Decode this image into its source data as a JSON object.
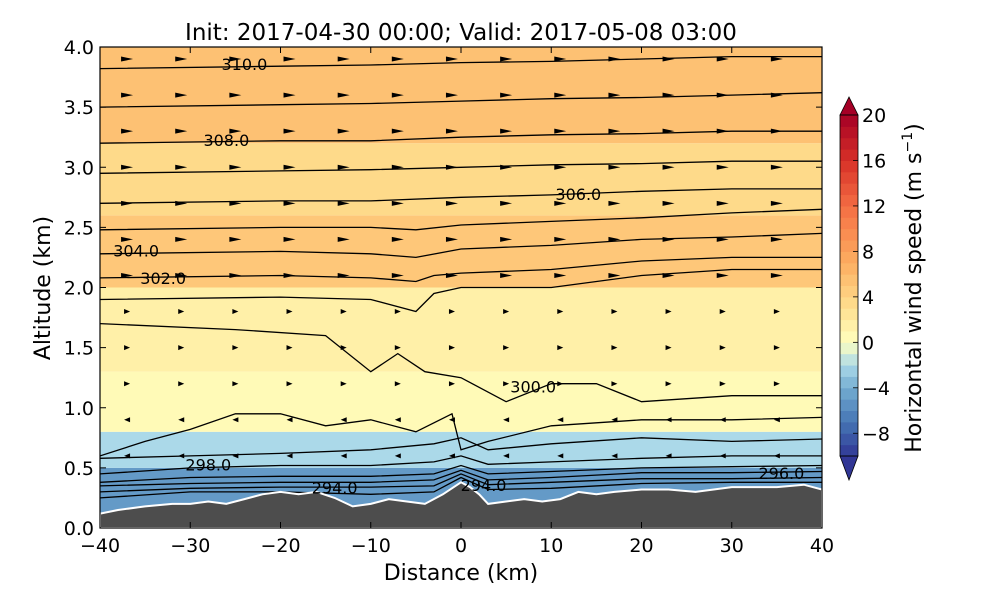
{
  "chart_data": {
    "type": "heatmap",
    "title": "Init: 2017-04-30 00:00; Valid: 2017-05-08 03:00",
    "xlabel": "Distance (km)",
    "ylabel": "Altitude (km)",
    "xlim": [
      -40,
      40
    ],
    "ylim": [
      0.0,
      4.0
    ],
    "xticks": [
      "−40",
      "−30",
      "−20",
      "−10",
      "0",
      "10",
      "20",
      "30",
      "40"
    ],
    "yticks": [
      "0.0",
      "0.5",
      "1.0",
      "1.5",
      "2.0",
      "2.5",
      "3.0",
      "3.5",
      "4.0"
    ],
    "colorbar": {
      "label": "Horizontal wind speed (m s",
      "label_exp": "−1",
      "label_close": ")",
      "range": [
        -10,
        20
      ],
      "ticks": [
        "20",
        "16",
        "12",
        "8",
        "4",
        "0",
        "−4",
        "−8"
      ],
      "extend": "both",
      "colormap": "RdYlBu_r"
    },
    "wind_field_bands": [
      {
        "z": [
          0.0,
          0.5
        ],
        "speed": -5
      },
      {
        "z": [
          0.5,
          0.8
        ],
        "speed": -2
      },
      {
        "z": [
          0.8,
          1.3
        ],
        "speed": 0.5
      },
      {
        "z": [
          1.3,
          2.0
        ],
        "speed": 1.5
      },
      {
        "z": [
          2.0,
          2.6
        ],
        "speed": 5
      },
      {
        "z": [
          2.6,
          3.2
        ],
        "speed": 3.5
      },
      {
        "z": [
          3.2,
          4.0
        ],
        "speed": 5.5
      }
    ],
    "isentropes": [
      {
        "label": "294.0",
        "x": [
          -40,
          -30,
          -20,
          -10,
          -3,
          0,
          3,
          10,
          20,
          30,
          40
        ],
        "z": [
          0.25,
          0.3,
          0.3,
          0.28,
          0.3,
          0.42,
          0.32,
          0.33,
          0.37,
          0.38,
          0.38
        ]
      },
      {
        "label": "",
        "x": [
          -40,
          -30,
          -20,
          -10,
          -3,
          0,
          3,
          10,
          20,
          30,
          40
        ],
        "z": [
          0.3,
          0.33,
          0.34,
          0.34,
          0.35,
          0.45,
          0.36,
          0.38,
          0.41,
          0.41,
          0.42
        ]
      },
      {
        "label": "296.0",
        "x": [
          -40,
          -30,
          -20,
          -10,
          -3,
          0,
          3,
          10,
          20,
          30,
          40
        ],
        "z": [
          0.35,
          0.37,
          0.38,
          0.38,
          0.4,
          0.48,
          0.4,
          0.42,
          0.46,
          0.46,
          0.47
        ]
      },
      {
        "label": "",
        "x": [
          -40,
          -30,
          -20,
          -10,
          -3,
          0,
          3,
          10,
          20,
          30,
          40
        ],
        "z": [
          0.38,
          0.42,
          0.43,
          0.43,
          0.45,
          0.52,
          0.45,
          0.47,
          0.5,
          0.51,
          0.52
        ]
      },
      {
        "label": "298.0",
        "x": [
          -40,
          -30,
          -20,
          -10,
          -3,
          0,
          3,
          10,
          20,
          30,
          40
        ],
        "z": [
          0.45,
          0.5,
          0.52,
          0.52,
          0.55,
          0.6,
          0.53,
          0.55,
          0.58,
          0.6,
          0.6
        ]
      },
      {
        "label": "",
        "x": [
          -40,
          -30,
          -20,
          -10,
          -3,
          0,
          3,
          10,
          20,
          30,
          40
        ],
        "z": [
          0.58,
          0.6,
          0.62,
          0.65,
          0.7,
          0.75,
          0.65,
          0.7,
          0.75,
          0.72,
          0.74
        ]
      },
      {
        "label": "",
        "x": [
          -40,
          -35,
          -30,
          -25,
          -20,
          -15,
          -10,
          -5,
          -1,
          0,
          3,
          10,
          20,
          30,
          40
        ],
        "z": [
          0.6,
          0.72,
          0.82,
          0.95,
          0.95,
          0.85,
          0.9,
          0.8,
          0.95,
          0.65,
          0.72,
          0.85,
          0.9,
          0.9,
          0.92
        ]
      },
      {
        "label": "300.0",
        "x": [
          -40,
          -25,
          -15,
          -10,
          -7,
          -4,
          0,
          5,
          10,
          15,
          20,
          30,
          40
        ],
        "z": [
          1.7,
          1.65,
          1.6,
          1.3,
          1.45,
          1.3,
          1.25,
          1.05,
          1.2,
          1.2,
          1.05,
          1.1,
          1.1
        ]
      },
      {
        "label": "302.0",
        "x": [
          -40,
          -20,
          -10,
          -5,
          -3,
          0,
          10,
          20,
          30,
          40
        ],
        "z": [
          1.9,
          1.92,
          1.9,
          1.8,
          1.95,
          2.0,
          2.0,
          2.1,
          2.15,
          2.15
        ]
      },
      {
        "label": "",
        "x": [
          -40,
          -20,
          -10,
          -5,
          -3,
          0,
          10,
          20,
          30,
          40
        ],
        "z": [
          2.08,
          2.1,
          2.08,
          2.05,
          2.1,
          2.12,
          2.15,
          2.22,
          2.25,
          2.25
        ]
      },
      {
        "label": "304.0",
        "x": [
          -40,
          -20,
          -10,
          -5,
          0,
          10,
          20,
          30,
          40
        ],
        "z": [
          2.28,
          2.3,
          2.28,
          2.25,
          2.32,
          2.35,
          2.4,
          2.42,
          2.45
        ]
      },
      {
        "label": "",
        "x": [
          -40,
          -20,
          -10,
          -5,
          0,
          10,
          20,
          30,
          40
        ],
        "z": [
          2.48,
          2.5,
          2.5,
          2.48,
          2.52,
          2.55,
          2.58,
          2.62,
          2.65
        ]
      },
      {
        "label": "306.0",
        "x": [
          -40,
          -20,
          -10,
          0,
          10,
          20,
          30,
          40
        ],
        "z": [
          2.7,
          2.72,
          2.72,
          2.75,
          2.77,
          2.8,
          2.82,
          2.82
        ]
      },
      {
        "label": "",
        "x": [
          -40,
          -20,
          -10,
          0,
          10,
          20,
          30,
          40
        ],
        "z": [
          2.95,
          2.97,
          2.98,
          3.0,
          3.02,
          3.03,
          3.05,
          3.05
        ]
      },
      {
        "label": "308.0",
        "x": [
          -40,
          -20,
          -10,
          0,
          10,
          20,
          30,
          40
        ],
        "z": [
          3.2,
          3.22,
          3.22,
          3.25,
          3.27,
          3.28,
          3.3,
          3.3
        ]
      },
      {
        "label": "",
        "x": [
          -40,
          -20,
          -10,
          0,
          10,
          20,
          30,
          40
        ],
        "z": [
          3.5,
          3.52,
          3.53,
          3.55,
          3.57,
          3.58,
          3.6,
          3.62
        ]
      },
      {
        "label": "310.0",
        "x": [
          -40,
          -20,
          -10,
          0,
          10,
          20,
          30,
          40
        ],
        "z": [
          3.82,
          3.84,
          3.85,
          3.87,
          3.88,
          3.9,
          3.92,
          3.92
        ]
      }
    ],
    "isentrope_labels": [
      {
        "text": "310.0",
        "x": -24,
        "z": 3.85
      },
      {
        "text": "308.0",
        "x": -26,
        "z": 3.22
      },
      {
        "text": "306.0",
        "x": 13,
        "z": 2.77
      },
      {
        "text": "304.0",
        "x": -36,
        "z": 2.3
      },
      {
        "text": "302.0",
        "x": -33,
        "z": 2.07
      },
      {
        "text": "300.0",
        "x": 8,
        "z": 1.17
      },
      {
        "text": "298.0",
        "x": -28,
        "z": 0.52
      },
      {
        "text": "294.0",
        "x": -14,
        "z": 0.33
      },
      {
        "text": "294.0",
        "x": 2.5,
        "z": 0.35
      },
      {
        "text": "296.0",
        "x": 35.5,
        "z": 0.45
      }
    ],
    "terrain": {
      "x": [
        -40,
        -38,
        -35,
        -32,
        -30,
        -28,
        -26,
        -24,
        -22,
        -20,
        -18,
        -16,
        -14,
        -12,
        -10,
        -8,
        -6,
        -4,
        -2,
        0,
        1,
        2,
        3,
        5,
        7,
        9,
        11,
        13,
        15,
        17,
        20,
        23,
        26,
        30,
        35,
        38,
        40
      ],
      "z": [
        0.12,
        0.15,
        0.18,
        0.2,
        0.2,
        0.22,
        0.2,
        0.24,
        0.28,
        0.3,
        0.28,
        0.3,
        0.25,
        0.18,
        0.2,
        0.24,
        0.22,
        0.2,
        0.28,
        0.38,
        0.34,
        0.28,
        0.2,
        0.22,
        0.24,
        0.22,
        0.24,
        0.3,
        0.28,
        0.3,
        0.32,
        0.32,
        0.3,
        0.34,
        0.34,
        0.36,
        0.32
      ]
    },
    "terrain_color": "#4d4d4d"
  }
}
